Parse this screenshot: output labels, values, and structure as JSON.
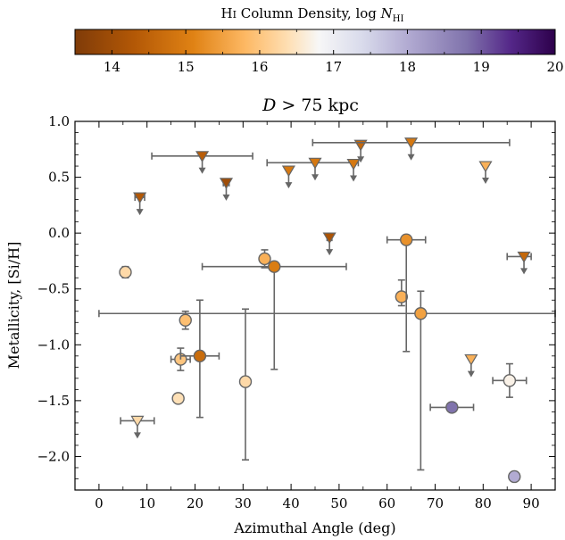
{
  "chart_data": {
    "type": "scatter",
    "title": "D > 75 kpc",
    "xlabel": "Azimuthal Angle (deg)",
    "ylabel": "Metallicity, [Si/H]",
    "xlim": [
      -5,
      95
    ],
    "ylim": [
      -2.3,
      1.0
    ],
    "xticks": [
      0,
      10,
      20,
      30,
      40,
      50,
      60,
      70,
      80,
      90
    ],
    "yticks": [
      -2.0,
      -1.5,
      -1.0,
      -0.5,
      0.0,
      0.5,
      1.0
    ],
    "xtick_labels": [
      "0",
      "10",
      "20",
      "30",
      "40",
      "50",
      "60",
      "70",
      "80",
      "90"
    ],
    "ytick_labels": [
      "−2.0",
      "−1.5",
      "−1.0",
      "−0.5",
      "0.0",
      "0.5",
      "1.0"
    ],
    "grid": false,
    "colorbar": {
      "label": "H I Column Density, log N_HI",
      "label_main": "H",
      "label_smallcaps": "I",
      "label_rest": " Column Density, log ",
      "label_N": "N",
      "label_sub": "HI",
      "range": [
        13.5,
        20
      ],
      "ticks": [
        "14",
        "15",
        "16",
        "17",
        "18",
        "19",
        "20"
      ],
      "tick_values": [
        14,
        15,
        16,
        17,
        18,
        19,
        20
      ],
      "colormap": "PuOr",
      "stops": [
        {
          "v": 13.5,
          "c": "#7f3b08"
        },
        {
          "v": 14.3,
          "c": "#b35806"
        },
        {
          "v": 15.1,
          "c": "#e08214"
        },
        {
          "v": 15.8,
          "c": "#fdb863"
        },
        {
          "v": 16.4,
          "c": "#fee0b6"
        },
        {
          "v": 16.8,
          "c": "#f7f7f7"
        },
        {
          "v": 17.4,
          "c": "#d8daeb"
        },
        {
          "v": 18.0,
          "c": "#b2abd2"
        },
        {
          "v": 18.8,
          "c": "#8073ac"
        },
        {
          "v": 19.4,
          "c": "#542788"
        },
        {
          "v": 20.0,
          "c": "#2d004b"
        }
      ]
    },
    "points": [
      {
        "x": 8.5,
        "y": 0.32,
        "xerr": [
          1,
          1
        ],
        "yerr": [
          0,
          0
        ],
        "logN": 14.3,
        "upper_limit": true
      },
      {
        "x": 21.5,
        "y": 0.69,
        "xerr": [
          10.5,
          10.5
        ],
        "yerr": [
          0,
          0
        ],
        "logN": 14.4,
        "upper_limit": true
      },
      {
        "x": 26.5,
        "y": 0.45,
        "xerr": [
          0.6,
          0.6
        ],
        "yerr": [
          0,
          0
        ],
        "logN": 14.0,
        "upper_limit": true
      },
      {
        "x": 39.5,
        "y": 0.56,
        "xerr": [
          0,
          0
        ],
        "yerr": [
          0,
          0
        ],
        "logN": 14.9,
        "upper_limit": true
      },
      {
        "x": 45.0,
        "y": 0.63,
        "xerr": [
          10,
          9
        ],
        "yerr": [
          0,
          0
        ],
        "logN": 14.9,
        "upper_limit": true
      },
      {
        "x": 53.0,
        "y": 0.62,
        "xerr": [
          0,
          0
        ],
        "yerr": [
          0,
          0
        ],
        "logN": 14.9,
        "upper_limit": true
      },
      {
        "x": 54.5,
        "y": 0.79,
        "xerr": [
          0,
          0
        ],
        "yerr": [
          0,
          0
        ],
        "logN": 14.6,
        "upper_limit": true
      },
      {
        "x": 65.0,
        "y": 0.81,
        "xerr": [
          20.5,
          20.5
        ],
        "yerr": [
          0,
          0
        ],
        "logN": 14.9,
        "upper_limit": true
      },
      {
        "x": 80.5,
        "y": 0.6,
        "xerr": [
          0,
          0
        ],
        "yerr": [
          0,
          0
        ],
        "logN": 15.7,
        "upper_limit": true
      },
      {
        "x": 48.0,
        "y": -0.04,
        "xerr": [
          0.5,
          0.5
        ],
        "yerr": [
          0,
          0
        ],
        "logN": 14.2,
        "upper_limit": true
      },
      {
        "x": 88.5,
        "y": -0.21,
        "xerr": [
          3.5,
          1.5
        ],
        "yerr": [
          0,
          0
        ],
        "logN": 14.6,
        "upper_limit": true
      },
      {
        "x": 77.5,
        "y": -1.13,
        "xerr": [
          0,
          0
        ],
        "yerr": [
          0,
          0
        ],
        "logN": 15.7,
        "upper_limit": true
      },
      {
        "x": 8.0,
        "y": -1.68,
        "xerr": [
          3.5,
          3.5
        ],
        "yerr": [
          0,
          0
        ],
        "logN": 16.3,
        "upper_limit": true
      },
      {
        "x": 5.5,
        "y": -0.35,
        "xerr": [
          0,
          0
        ],
        "yerr": [
          0.05,
          0.05
        ],
        "logN": 16.3,
        "upper_limit": false
      },
      {
        "x": 18.0,
        "y": -0.78,
        "xerr": [
          0,
          0
        ],
        "yerr": [
          0.08,
          0.08
        ],
        "logN": 15.9,
        "upper_limit": false
      },
      {
        "x": 17.0,
        "y": -1.13,
        "xerr": [
          2,
          2
        ],
        "yerr": [
          0.1,
          0.1
        ],
        "logN": 16.0,
        "upper_limit": false
      },
      {
        "x": 16.5,
        "y": -1.48,
        "xerr": [
          0,
          0
        ],
        "yerr": [
          0,
          0
        ],
        "logN": 16.4,
        "upper_limit": false
      },
      {
        "x": 21.0,
        "y": -1.1,
        "xerr": [
          4,
          4
        ],
        "yerr": [
          0.55,
          0.5
        ],
        "logN": 14.7,
        "upper_limit": false
      },
      {
        "x": 30.5,
        "y": -1.33,
        "xerr": [
          0,
          0
        ],
        "yerr": [
          0.7,
          0.65
        ],
        "logN": 16.3,
        "upper_limit": false
      },
      {
        "x": 34.5,
        "y": -0.23,
        "xerr": [
          0,
          0
        ],
        "yerr": [
          0.08,
          0.08
        ],
        "logN": 15.7,
        "upper_limit": false
      },
      {
        "x": 36.5,
        "y": -0.3,
        "xerr": [
          15,
          15
        ],
        "yerr": [
          0.92,
          0
        ],
        "logN": 15.0,
        "upper_limit": false
      },
      {
        "x": 63.0,
        "y": -0.57,
        "xerr": [
          1,
          1
        ],
        "yerr": [
          0.08,
          0.15
        ],
        "logN": 15.7,
        "upper_limit": false
      },
      {
        "x": 64.0,
        "y": -0.06,
        "xerr": [
          4,
          4
        ],
        "yerr": [
          1.0,
          0
        ],
        "logN": 15.3,
        "upper_limit": false
      },
      {
        "x": 67.0,
        "y": -0.72,
        "xerr": [
          67,
          28
        ],
        "yerr": [
          1.4,
          0.2
        ],
        "logN": 15.5,
        "upper_limit": false
      },
      {
        "x": 73.5,
        "y": -1.56,
        "xerr": [
          4.5,
          4.5
        ],
        "yerr": [
          0,
          0
        ],
        "logN": 18.8,
        "upper_limit": false
      },
      {
        "x": 85.5,
        "y": -1.32,
        "xerr": [
          3.5,
          3.5
        ],
        "yerr": [
          0.15,
          0.15
        ],
        "logN": 16.7,
        "upper_limit": false
      },
      {
        "x": 86.5,
        "y": -2.18,
        "xerr": [
          1,
          1
        ],
        "yerr": [
          0,
          0
        ],
        "logN": 18.0,
        "upper_limit": false
      }
    ]
  }
}
